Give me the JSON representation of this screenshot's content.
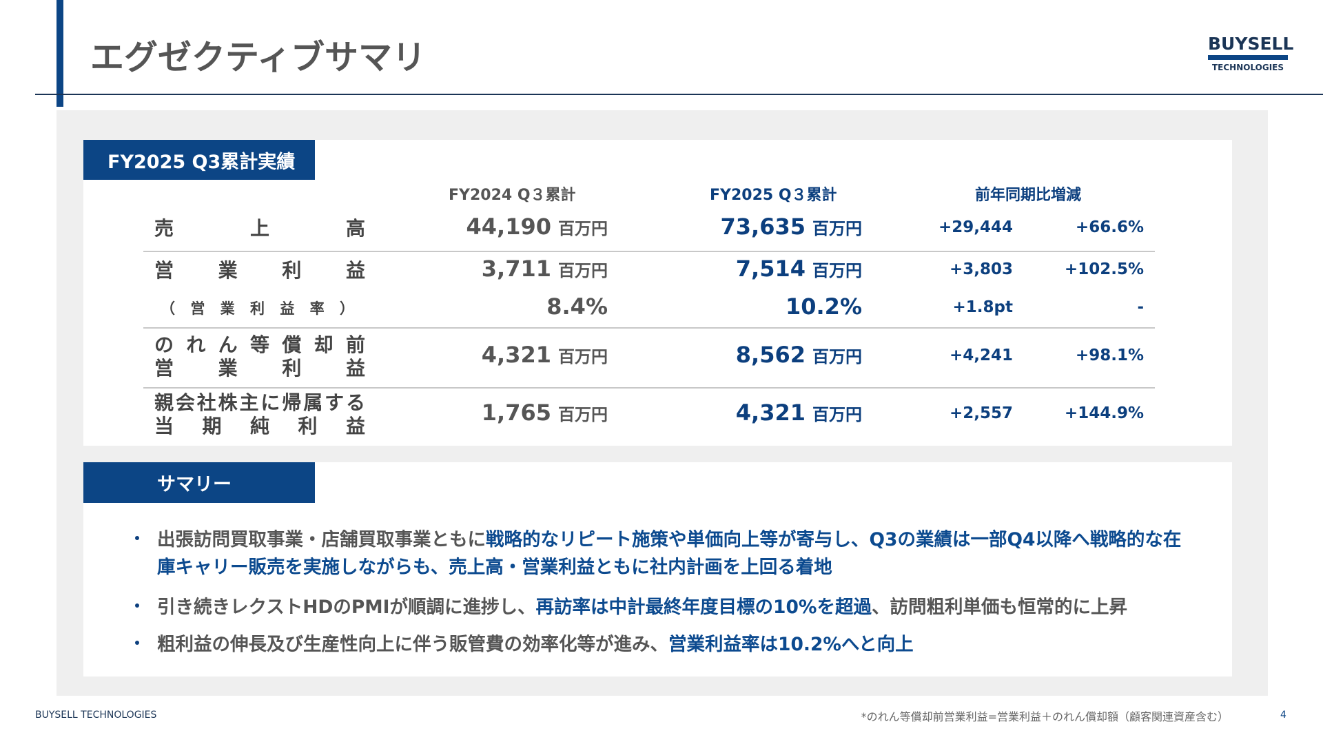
{
  "header": {
    "title": "エグゼクティブサマリ",
    "logo": {
      "line1": "BUYSELL",
      "line2": "TECHNOLOGIES"
    }
  },
  "results": {
    "tab": "FY2025 Q3累計実績",
    "columns": [
      "FY2024 Q３累計",
      "FY2025 Q３累計",
      "前年同期比増減"
    ],
    "rows": [
      {
        "label": [
          "売上高"
        ],
        "fy2024": "44,190",
        "fy2025": "73,635",
        "unit": "百万円",
        "change": "+29,444",
        "change_pct": "+66.6%"
      },
      {
        "label": [
          "営業利益"
        ],
        "fy2024": "3,711",
        "fy2025": "7,514",
        "unit": "百万円",
        "change": "+3,803",
        "change_pct": "+102.5%"
      },
      {
        "label": [
          "（営業利益率）"
        ],
        "fy2024": "8.4%",
        "fy2025": "10.2%",
        "change": "+1.8pt",
        "change_pct": "-"
      },
      {
        "label": [
          "のれん等償却前",
          "営業利益"
        ],
        "fy2024": "4,321",
        "fy2025": "8,562",
        "unit": "百万円",
        "change": "+4,241",
        "change_pct": "+98.1%"
      },
      {
        "label": [
          "親会社株主に帰属する",
          "当期純利益"
        ],
        "fy2024": "1,765",
        "fy2025": "4,321",
        "unit": "百万円",
        "change": "+2,557",
        "change_pct": "+144.9%"
      }
    ]
  },
  "summary": {
    "tab": "サマリー",
    "bullets": [
      [
        {
          "text": "出張訪問買取事業・店舗買取事業ともに"
        },
        {
          "text": "戦略的なリピート施策や単価向上等が寄与し、Q3の業績は一部Q4以降へ戦略的な在庫キャリー販売を実施しながらも、売上高・営業利益ともに社内計画を上回る着地",
          "highlight": true
        }
      ],
      [
        {
          "text": "引き続きレクストHDのPMIが順調に進捗し、"
        },
        {
          "text": "再訪率は中計最終年度目標の10%を超過",
          "highlight": true
        },
        {
          "text": "、訪問粗利単価も恒常的に上昇"
        }
      ],
      [
        {
          "text": "粗利益の伸長及び生産性向上に伴う販管費の効率化等が進み、"
        },
        {
          "text": "営業利益率は10.2%へと向上",
          "highlight": true
        }
      ]
    ]
  },
  "footer": {
    "brand": "BUYSELL TECHNOLOGIES",
    "note": "*のれん等償却前営業利益=営業利益＋のれん償却額（顧客関連資産含む）",
    "page": "4"
  }
}
